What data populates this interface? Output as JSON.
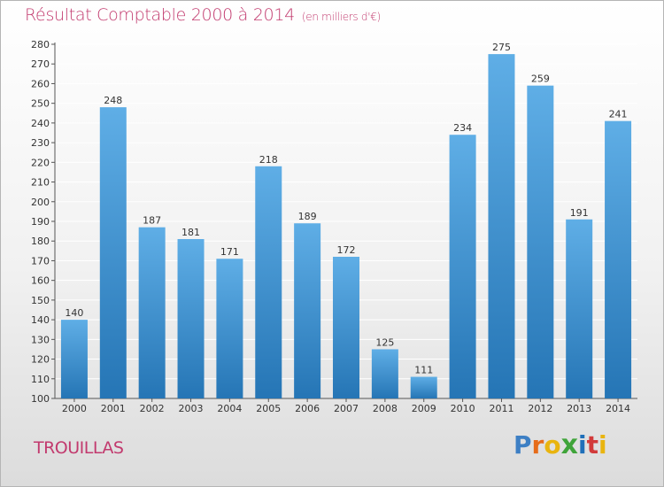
{
  "title": "Résultat Comptable 2000 à 2014",
  "subtitle": "(en milliers d'€)",
  "town": "TROUILLAS",
  "logo": {
    "letters": [
      "P",
      "r",
      "o",
      "x",
      "i",
      "t",
      "i"
    ],
    "colors": [
      "#3d7fc4",
      "#e66c1a",
      "#e9b40f",
      "#3fa43a",
      "#1f6fb9",
      "#d23b3b",
      "#e9b40f"
    ]
  },
  "colors": {
    "bar_top": "#5faee6",
    "bar_bottom": "#2575b5",
    "title": "#c23a6e",
    "axis_text": "#333333",
    "grid": "#ffffff"
  },
  "chart_data": {
    "type": "bar",
    "categories": [
      "2000",
      "2001",
      "2002",
      "2003",
      "2004",
      "2005",
      "2006",
      "2007",
      "2008",
      "2009",
      "2010",
      "2011",
      "2012",
      "2013",
      "2014"
    ],
    "values": [
      140,
      248,
      187,
      181,
      171,
      218,
      189,
      172,
      125,
      111,
      234,
      275,
      259,
      191,
      241
    ],
    "data_labels": [
      "140",
      "248",
      "187",
      "181",
      "171",
      "218",
      "189",
      "172",
      "125",
      "111",
      "234",
      "275",
      "259",
      "191",
      "241"
    ],
    "title": "Résultat Comptable 2000 à 2014",
    "xlabel": "",
    "ylabel": "",
    "ylim": [
      100,
      280
    ],
    "yticks": [
      100,
      110,
      120,
      130,
      140,
      150,
      160,
      170,
      180,
      190,
      200,
      210,
      220,
      230,
      240,
      250,
      260,
      270,
      280
    ],
    "grid": true,
    "legend": "none"
  }
}
